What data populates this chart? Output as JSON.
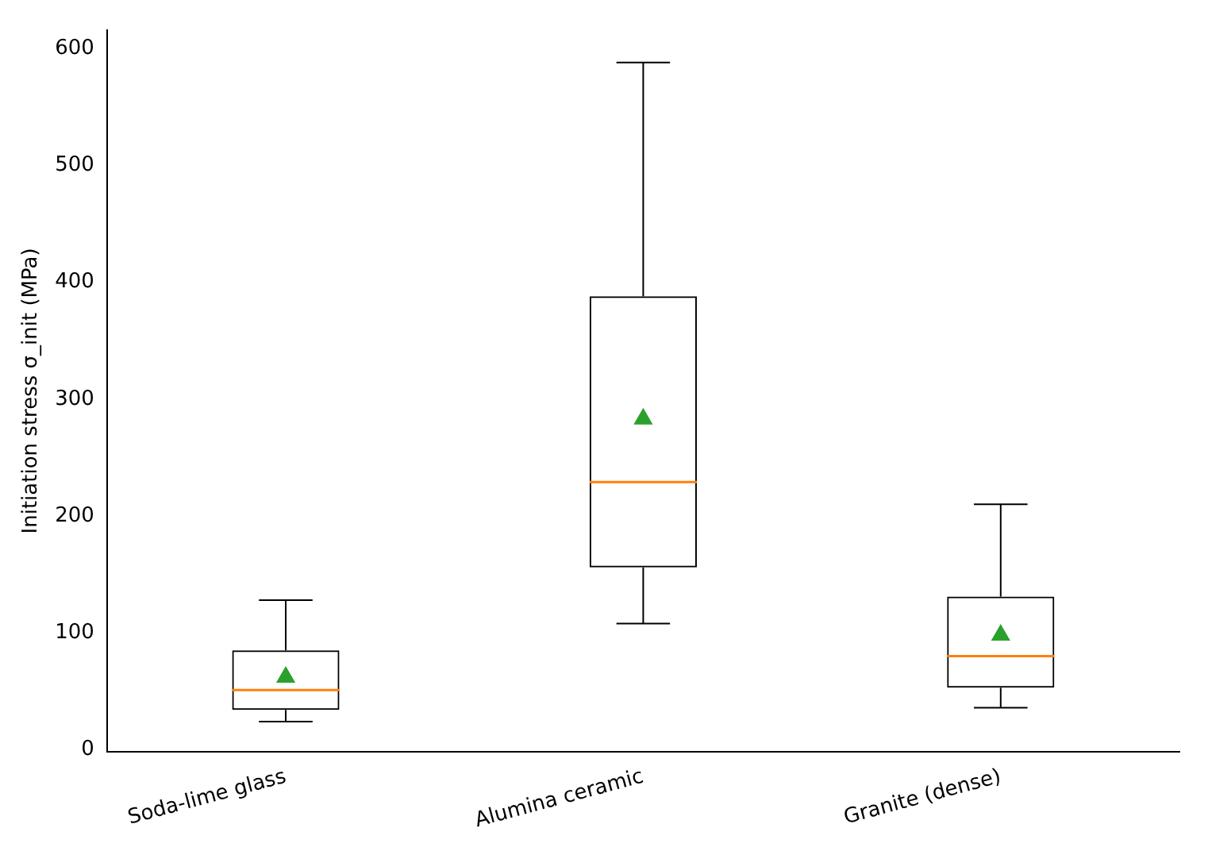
{
  "chart_data": {
    "type": "box",
    "ylabel": "Initiation stress σ_init (MPa)",
    "categories": [
      "Soda-lime glass",
      "Alumina ceramic",
      "Granite (dense)"
    ],
    "boxes": [
      {
        "low": 24,
        "q1": 34,
        "median": 51,
        "q3": 85,
        "high": 128,
        "mean": 62
      },
      {
        "low": 108,
        "q1": 156,
        "median": 229,
        "q3": 388,
        "high": 588,
        "mean": 283
      },
      {
        "low": 36,
        "q1": 53,
        "median": 80,
        "q3": 131,
        "high": 210,
        "mean": 98
      }
    ],
    "ylim": [
      -2,
      616
    ],
    "yticks": [
      0,
      100,
      200,
      300,
      400,
      500,
      600
    ],
    "grid": false,
    "legend": false,
    "marker": "triangle"
  }
}
